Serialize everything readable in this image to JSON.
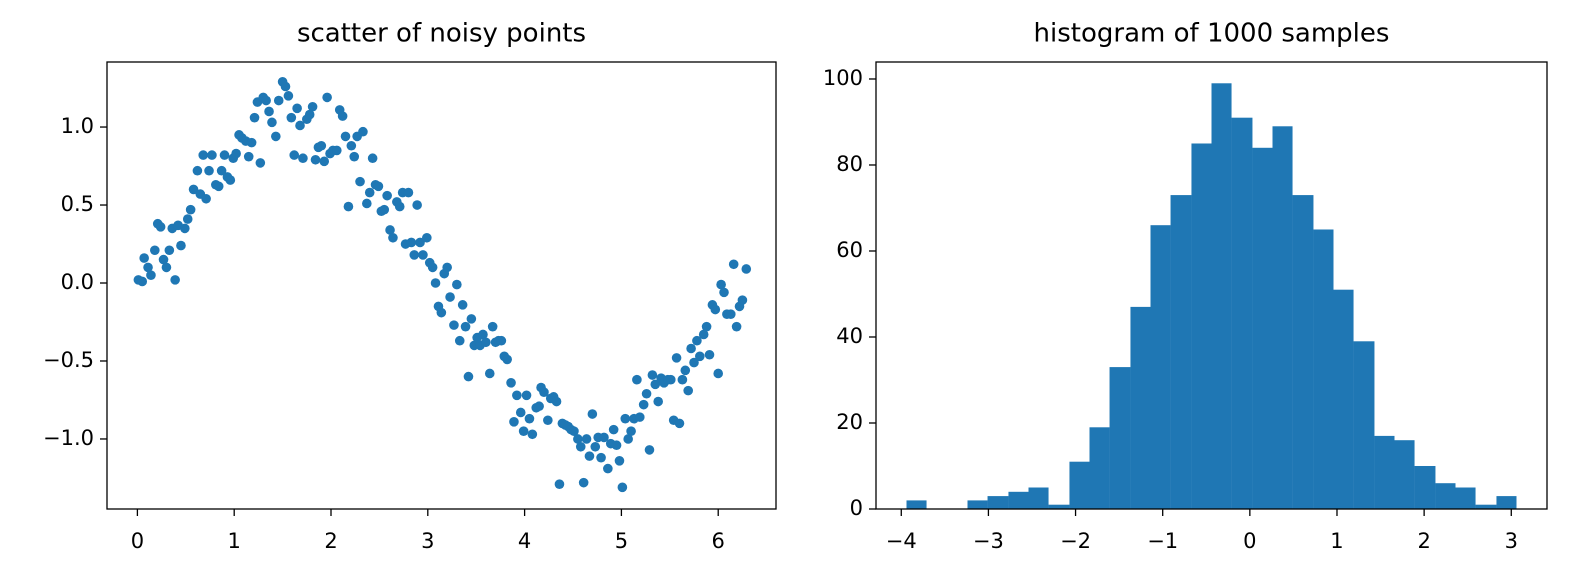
{
  "chart_data": [
    {
      "type": "scatter",
      "title": "scatter of noisy points",
      "color": "#1f77b4",
      "xlim": [
        -0.314,
        6.597
      ],
      "ylim": [
        -1.449,
        1.417
      ],
      "xticks": [
        0,
        1,
        2,
        3,
        4,
        5,
        6
      ],
      "yticks": [
        {
          "value": -1,
          "label": "−1.0"
        },
        {
          "value": -0.5,
          "label": "−0.5"
        },
        {
          "value": 0,
          "label": "0.0"
        },
        {
          "value": 0.5,
          "label": "0.5"
        },
        {
          "value": 1,
          "label": "1.0"
        }
      ],
      "x": [
        0.01,
        0.05,
        0.07,
        0.11,
        0.14,
        0.18,
        0.21,
        0.24,
        0.27,
        0.3,
        0.33,
        0.36,
        0.39,
        0.42,
        0.45,
        0.49,
        0.52,
        0.55,
        0.58,
        0.62,
        0.65,
        0.68,
        0.71,
        0.74,
        0.77,
        0.81,
        0.84,
        0.87,
        0.9,
        0.93,
        0.96,
        0.99,
        1.02,
        1.05,
        1.08,
        1.12,
        1.15,
        1.18,
        1.21,
        1.24,
        1.27,
        1.3,
        1.33,
        1.36,
        1.39,
        1.43,
        1.46,
        1.5,
        1.53,
        1.56,
        1.59,
        1.62,
        1.65,
        1.68,
        1.71,
        1.75,
        1.78,
        1.81,
        1.84,
        1.87,
        1.9,
        1.93,
        1.96,
        1.99,
        2.02,
        2.06,
        2.09,
        2.12,
        2.15,
        2.18,
        2.21,
        2.24,
        2.27,
        2.3,
        2.33,
        2.37,
        2.4,
        2.43,
        2.46,
        2.49,
        2.52,
        2.55,
        2.58,
        2.61,
        2.64,
        2.68,
        2.71,
        2.74,
        2.77,
        2.8,
        2.83,
        2.86,
        2.89,
        2.92,
        2.95,
        2.99,
        3.02,
        3.05,
        3.08,
        3.11,
        3.14,
        3.17,
        3.2,
        3.23,
        3.27,
        3.3,
        3.33,
        3.36,
        3.39,
        3.42,
        3.45,
        3.48,
        3.51,
        3.54,
        3.57,
        3.6,
        3.64,
        3.67,
        3.7,
        3.73,
        3.76,
        3.79,
        3.82,
        3.86,
        3.89,
        3.92,
        3.96,
        3.99,
        4.02,
        4.05,
        4.08,
        4.12,
        4.15,
        4.17,
        4.2,
        4.24,
        4.27,
        4.3,
        4.33,
        4.36,
        4.39,
        4.42,
        4.45,
        4.48,
        4.51,
        4.55,
        4.58,
        4.61,
        4.64,
        4.67,
        4.7,
        4.73,
        4.76,
        4.79,
        4.82,
        4.86,
        4.89,
        4.92,
        4.95,
        4.98,
        5.01,
        5.04,
        5.07,
        5.1,
        5.13,
        5.16,
        5.19,
        5.23,
        5.26,
        5.29,
        5.32,
        5.35,
        5.38,
        5.41,
        5.44,
        5.48,
        5.51,
        5.54,
        5.57,
        5.6,
        5.63,
        5.66,
        5.69,
        5.72,
        5.75,
        5.78,
        5.81,
        5.85,
        5.88,
        5.91,
        5.94,
        5.97,
        6.0,
        6.03,
        6.06,
        6.09,
        6.13,
        6.16,
        6.19,
        6.22,
        6.25,
        6.29
      ],
      "values": [
        0.02,
        0.01,
        0.16,
        0.1,
        0.05,
        0.21,
        0.38,
        0.36,
        0.15,
        0.1,
        0.21,
        0.35,
        0.02,
        0.37,
        0.24,
        0.35,
        0.41,
        0.47,
        0.6,
        0.72,
        0.57,
        0.82,
        0.54,
        0.72,
        0.82,
        0.63,
        0.62,
        0.72,
        0.82,
        0.68,
        0.66,
        0.8,
        0.83,
        0.95,
        0.93,
        0.91,
        0.81,
        0.9,
        1.06,
        1.16,
        0.77,
        1.19,
        1.17,
        1.1,
        1.03,
        0.94,
        1.17,
        1.29,
        1.26,
        1.2,
        1.06,
        0.82,
        1.12,
        1.01,
        0.8,
        1.05,
        1.08,
        1.13,
        0.79,
        0.87,
        0.88,
        0.78,
        1.19,
        0.83,
        0.85,
        0.85,
        1.11,
        1.07,
        0.94,
        0.49,
        0.88,
        0.81,
        0.94,
        0.65,
        0.97,
        0.51,
        0.58,
        0.8,
        0.63,
        0.62,
        0.46,
        0.47,
        0.56,
        0.34,
        0.29,
        0.52,
        0.49,
        0.58,
        0.25,
        0.58,
        0.26,
        0.18,
        0.5,
        0.26,
        0.18,
        0.29,
        0.13,
        0.1,
        0.0,
        -0.15,
        -0.19,
        0.06,
        0.1,
        -0.09,
        -0.27,
        -0.01,
        -0.37,
        -0.14,
        -0.28,
        -0.6,
        -0.23,
        -0.4,
        -0.35,
        -0.4,
        -0.33,
        -0.38,
        -0.58,
        -0.28,
        -0.38,
        -0.37,
        -0.37,
        -0.47,
        -0.49,
        -0.64,
        -0.89,
        -0.72,
        -0.83,
        -0.95,
        -0.72,
        -0.87,
        -0.97,
        -0.8,
        -0.79,
        -0.67,
        -0.7,
        -0.88,
        -0.74,
        -0.73,
        -0.76,
        -1.29,
        -0.9,
        -0.91,
        -0.92,
        -0.94,
        -0.95,
        -1.0,
        -1.05,
        -1.28,
        -1.0,
        -1.11,
        -0.84,
        -1.05,
        -0.99,
        -1.12,
        -0.99,
        -1.19,
        -1.03,
        -0.94,
        -1.04,
        -1.14,
        -1.31,
        -0.87,
        -1.0,
        -0.95,
        -0.87,
        -0.62,
        -0.86,
        -0.78,
        -0.71,
        -1.07,
        -0.59,
        -0.65,
        -0.76,
        -0.61,
        -0.64,
        -0.62,
        -0.62,
        -0.88,
        -0.48,
        -0.9,
        -0.62,
        -0.56,
        -0.69,
        -0.42,
        -0.51,
        -0.37,
        -0.47,
        -0.33,
        -0.28,
        -0.46,
        -0.14,
        -0.17,
        -0.58,
        -0.01,
        -0.06,
        -0.2,
        -0.2,
        0.12,
        -0.28,
        -0.15,
        -0.11,
        0.09
      ]
    },
    {
      "type": "histogram",
      "title": "histogram of 1000 samples",
      "color": "#1f77b4",
      "xlim": [
        -4.29,
        3.41
      ],
      "ylim": [
        0,
        103.95
      ],
      "xticks": [
        {
          "value": -4,
          "label": "−4"
        },
        {
          "value": -3,
          "label": "−3"
        },
        {
          "value": -2,
          "label": "−2"
        },
        {
          "value": -1,
          "label": "−1"
        },
        0,
        1,
        2,
        3
      ],
      "yticks": [
        0,
        20,
        40,
        60,
        80,
        100
      ],
      "bins": [
        -3.94,
        -3.71,
        -3.47,
        -3.24,
        -3.01,
        -2.77,
        -2.54,
        -2.31,
        -2.07,
        -1.84,
        -1.61,
        -1.37,
        -1.14,
        -0.91,
        -0.67,
        -0.44,
        -0.21,
        0.03,
        0.26,
        0.49,
        0.73,
        0.96,
        1.19,
        1.43,
        1.66,
        1.89,
        2.13,
        2.36,
        2.59,
        2.83,
        3.06
      ],
      "values": [
        2,
        0,
        0,
        2,
        3,
        4,
        5,
        1,
        11,
        19,
        33,
        47,
        66,
        73,
        85,
        99,
        91,
        84,
        89,
        73,
        65,
        51,
        39,
        17,
        16,
        10,
        6,
        5,
        1,
        3
      ]
    }
  ]
}
